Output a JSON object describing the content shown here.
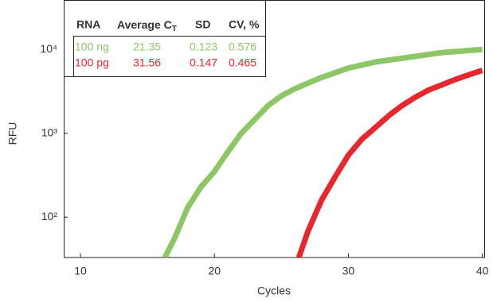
{
  "chart_data": {
    "type": "line",
    "log_y": true,
    "x_label": "Cycles",
    "y_label": "RFU",
    "xlim": [
      8.75,
      40.2
    ],
    "xticks": [
      10,
      20,
      30,
      40
    ],
    "ylim": [
      33,
      39000
    ],
    "yticks": [
      {
        "value": 100,
        "label": "10²"
      },
      {
        "value": 1000,
        "label": "10³"
      },
      {
        "value": 10000,
        "label": "10⁴"
      }
    ],
    "series": [
      {
        "name": "100 ng",
        "color": "#8cc665",
        "x": [
          16.3,
          17,
          18,
          19,
          20,
          21,
          22,
          23,
          24,
          25,
          26,
          28,
          30,
          32,
          35,
          37,
          40
        ],
        "values": [
          33,
          55,
          130,
          230,
          350,
          600,
          1000,
          1460,
          2140,
          2800,
          3400,
          4650,
          6000,
          7100,
          8300,
          9200,
          10000
        ]
      },
      {
        "name": "100 pg",
        "color": "#e8262d",
        "x": [
          26.3,
          27,
          28,
          29,
          30,
          31,
          32,
          33,
          34,
          35,
          36,
          37,
          38,
          39,
          40
        ],
        "values": [
          33,
          69,
          160,
          300,
          550,
          850,
          1170,
          1620,
          2140,
          2700,
          3300,
          3800,
          4400,
          5000,
          5650
        ]
      }
    ],
    "table": {
      "columns": [
        "RNA",
        "Average C",
        "SD",
        "CV, %"
      ],
      "ct_subscript": "T",
      "rows": [
        [
          21.35,
          0.123,
          0.576
        ],
        [
          31.56,
          0.147,
          0.465
        ]
      ]
    }
  }
}
